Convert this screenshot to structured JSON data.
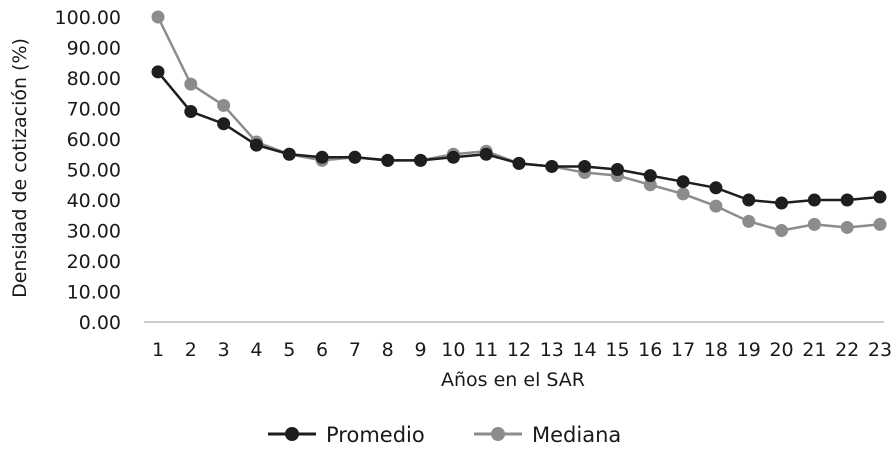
{
  "chart_data": {
    "type": "line",
    "title": "",
    "xlabel": "Años en el SAR",
    "ylabel": "Densidad de cotización (%)",
    "ylim": [
      0,
      100
    ],
    "y_ticks": [
      "0.00",
      "10.00",
      "20.00",
      "30.00",
      "40.00",
      "50.00",
      "60.00",
      "70.00",
      "80.00",
      "90.00",
      "100.00"
    ],
    "categories": [
      "1",
      "2",
      "3",
      "4",
      "5",
      "6",
      "7",
      "8",
      "9",
      "10",
      "11",
      "12",
      "13",
      "14",
      "15",
      "16",
      "17",
      "18",
      "19",
      "20",
      "21",
      "22",
      "23"
    ],
    "series": [
      {
        "name": "Promedio",
        "color": "#1e1e1e",
        "values": [
          82,
          69,
          65,
          58,
          55,
          54,
          54,
          53,
          53,
          54,
          55,
          52,
          51,
          51,
          50,
          48,
          46,
          44,
          40,
          39,
          40,
          40,
          41
        ]
      },
      {
        "name": "Mediana",
        "color": "#8c8c8c",
        "values": [
          100,
          78,
          71,
          59,
          55,
          53,
          54,
          53,
          53,
          55,
          56,
          52,
          51,
          49,
          48,
          45,
          42,
          38,
          33,
          30,
          32,
          31,
          32
        ]
      }
    ],
    "grid": false,
    "legend_position": "bottom"
  }
}
